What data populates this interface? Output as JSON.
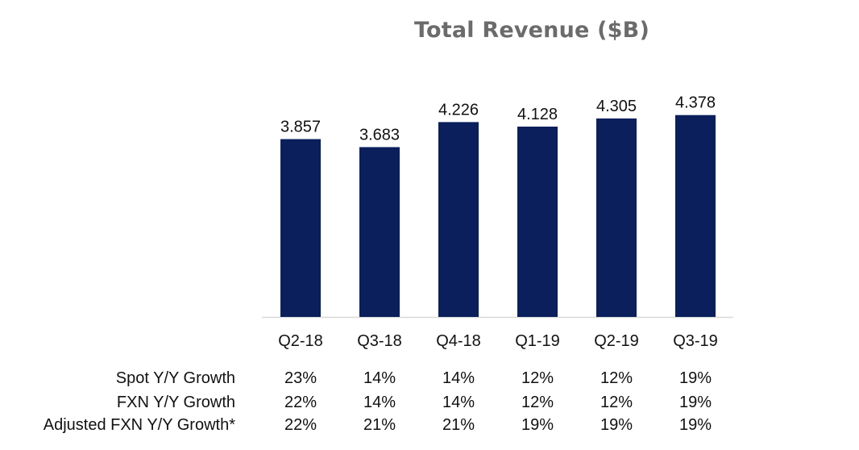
{
  "chart_data": {
    "type": "bar",
    "title": "Total Revenue ($B)",
    "categories": [
      "Q2-18",
      "Q3-18",
      "Q4-18",
      "Q1-19",
      "Q2-19",
      "Q3-19"
    ],
    "values": [
      3.857,
      3.683,
      4.226,
      4.128,
      4.305,
      4.378
    ],
    "value_labels": [
      "3.857",
      "3.683",
      "4.226",
      "4.128",
      "4.305",
      "4.378"
    ],
    "xlabel": "",
    "ylabel": "",
    "ylim": [
      0,
      4.6
    ],
    "grid": false,
    "bar_color": "#0a1f5c",
    "axis_color": "#d9d9d9",
    "title_color": "#6b6b6b"
  },
  "growth_table": {
    "rows": [
      {
        "label": "Spot Y/Y Growth",
        "values": [
          "23%",
          "14%",
          "14%",
          "12%",
          "12%",
          "19%"
        ]
      },
      {
        "label": "FXN Y/Y Growth",
        "values": [
          "22%",
          "14%",
          "14%",
          "12%",
          "12%",
          "19%"
        ]
      },
      {
        "label": "Adjusted FXN Y/Y Growth*",
        "values": [
          "22%",
          "21%",
          "21%",
          "19%",
          "19%",
          "19%"
        ]
      }
    ]
  }
}
